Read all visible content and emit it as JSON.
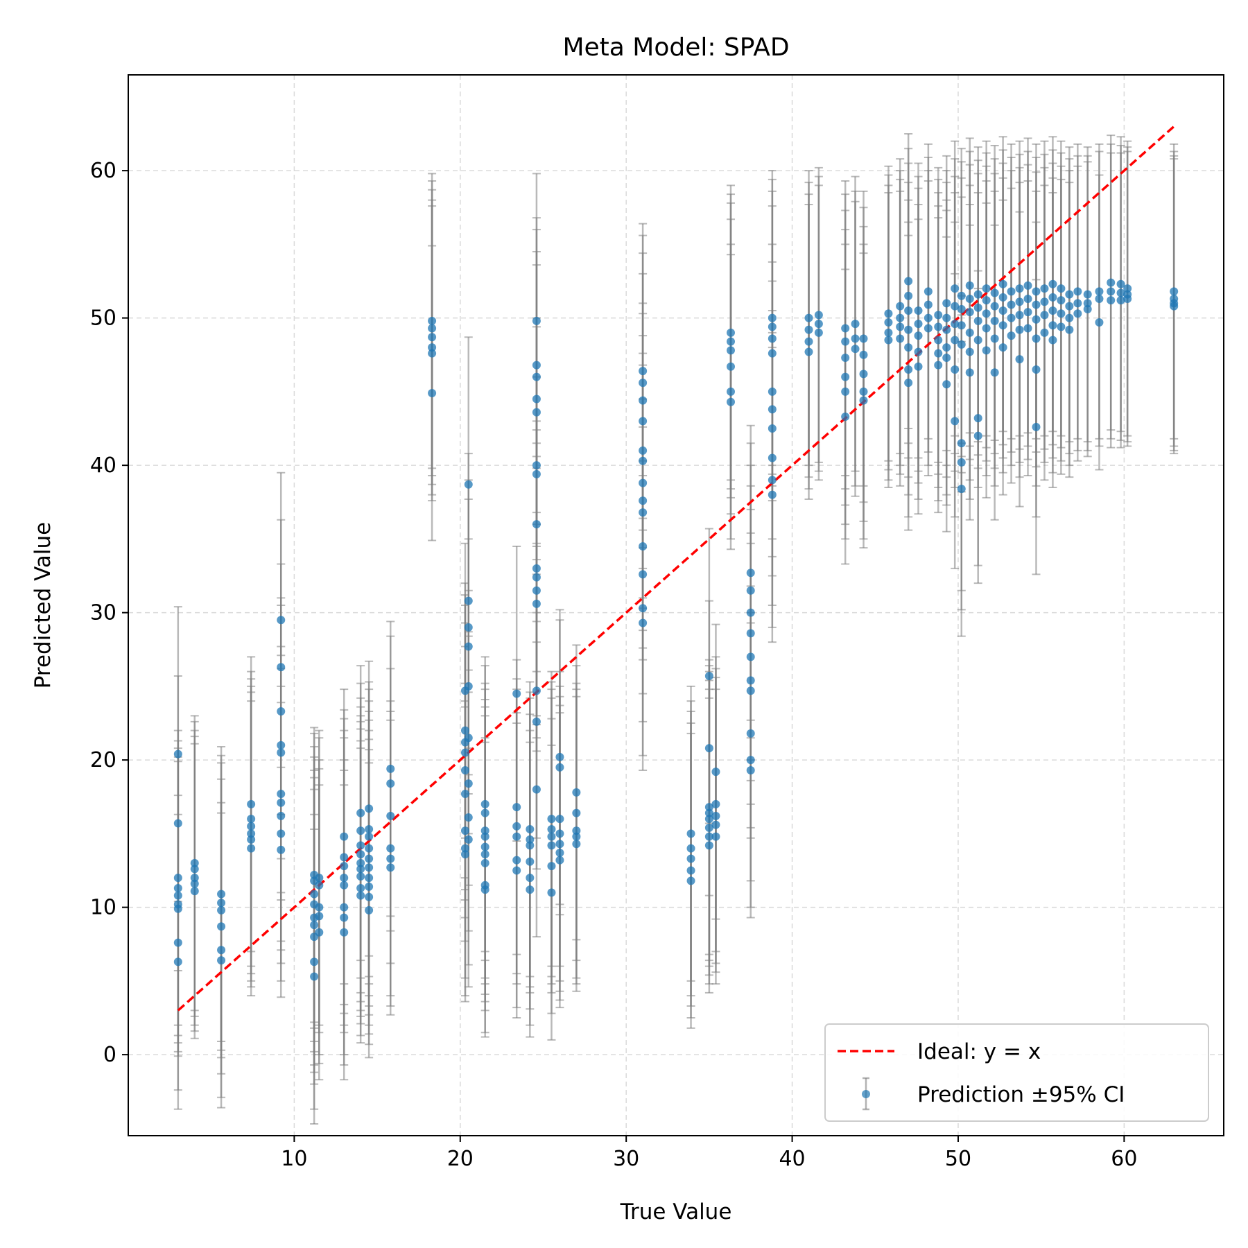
{
  "chart_data": {
    "type": "scatter",
    "title": "Meta Model: SPAD",
    "xlabel": "True Value",
    "ylabel": "Predicted Value",
    "xlim": [
      0,
      66
    ],
    "ylim": [
      -5.5,
      66.5
    ],
    "xticks": [
      10,
      20,
      30,
      40,
      50,
      60
    ],
    "yticks": [
      0,
      10,
      20,
      30,
      40,
      50,
      60
    ],
    "grid": true,
    "legend_position": "bottom-right",
    "colors": {
      "points": "#1f77b4",
      "errorbars": "#808080",
      "ideal": "#ff0000"
    },
    "ideal_line": {
      "name": "Ideal: y = x",
      "x": [
        3,
        63
      ],
      "y": [
        3,
        63
      ]
    },
    "series_name": "Prediction ±95% CI",
    "ci_half_width": 10,
    "groups": [
      {
        "x": 3.0,
        "y": [
          20.4,
          15.7,
          12.0,
          11.3,
          10.8,
          10.2,
          9.9,
          7.6,
          6.3
        ]
      },
      {
        "x": 4.0,
        "y": [
          13.0,
          12.6,
          12.0,
          11.6,
          11.1
        ]
      },
      {
        "x": 5.6,
        "y": [
          10.9,
          10.3,
          9.8,
          8.7,
          7.1,
          6.4
        ]
      },
      {
        "x": 7.4,
        "y": [
          17.0,
          16.0,
          15.5,
          15.0,
          14.6,
          14.0
        ]
      },
      {
        "x": 9.2,
        "y": [
          29.5,
          26.3,
          23.3,
          21.0,
          20.5,
          17.7,
          17.1,
          16.2,
          15.0,
          13.9
        ]
      },
      {
        "x": 11.2,
        "y": [
          12.2,
          11.8,
          10.9,
          10.2,
          9.3,
          8.8,
          8.0,
          6.3,
          5.3
        ]
      },
      {
        "x": 11.5,
        "y": [
          12.0,
          11.5,
          10.0,
          9.4,
          8.3
        ]
      },
      {
        "x": 13.0,
        "y": [
          14.8,
          13.4,
          12.8,
          12.0,
          11.5,
          10.0,
          9.3,
          8.3
        ]
      },
      {
        "x": 14.0,
        "y": [
          16.4,
          15.2,
          14.2,
          13.6,
          13.0,
          12.6,
          12.1,
          11.3,
          10.8
        ]
      },
      {
        "x": 14.5,
        "y": [
          16.7,
          15.3,
          14.8,
          14.0,
          13.3,
          12.7,
          12.0,
          11.4,
          10.7,
          9.8
        ]
      },
      {
        "x": 15.8,
        "y": [
          19.4,
          18.4,
          16.2,
          14.0,
          13.3,
          12.7
        ]
      },
      {
        "x": 18.3,
        "y": [
          49.8,
          49.3,
          48.7,
          48.0,
          47.6,
          44.9
        ]
      },
      {
        "x": 20.3,
        "y": [
          24.7,
          22.0,
          21.2,
          20.5,
          19.3,
          17.7,
          15.2,
          14.0,
          13.6
        ]
      },
      {
        "x": 20.5,
        "y": [
          38.7,
          30.8,
          29.0,
          27.7,
          25.0,
          21.5,
          18.4,
          16.1,
          14.6
        ]
      },
      {
        "x": 21.5,
        "y": [
          17.0,
          16.4,
          15.2,
          14.8,
          14.1,
          13.6,
          13.0,
          11.5,
          11.2
        ]
      },
      {
        "x": 23.4,
        "y": [
          24.5,
          16.8,
          15.5,
          14.8,
          13.2,
          12.5
        ]
      },
      {
        "x": 24.2,
        "y": [
          15.3,
          14.6,
          14.2,
          13.1,
          12.0,
          11.2
        ]
      },
      {
        "x": 24.6,
        "y": [
          49.8,
          46.8,
          46.0,
          44.5,
          43.6,
          40.0,
          39.4,
          36.0,
          33.0,
          32.4,
          31.5,
          30.6,
          24.7,
          22.6,
          18.0
        ]
      },
      {
        "x": 25.5,
        "y": [
          16.0,
          15.3,
          14.8,
          14.2,
          12.8,
          11.0
        ]
      },
      {
        "x": 26.0,
        "y": [
          20.2,
          19.5,
          16.0,
          15.0,
          14.3,
          13.7,
          13.2
        ]
      },
      {
        "x": 27.0,
        "y": [
          17.8,
          16.4,
          15.2,
          14.8,
          14.3
        ]
      },
      {
        "x": 31.0,
        "y": [
          46.4,
          45.6,
          44.4,
          43.0,
          41.0,
          40.3,
          38.8,
          37.6,
          36.8,
          34.5,
          32.6,
          30.3,
          29.3
        ]
      },
      {
        "x": 33.9,
        "y": [
          15.0,
          14.0,
          13.3,
          12.5,
          11.8
        ]
      },
      {
        "x": 35.0,
        "y": [
          25.7,
          20.8,
          16.8,
          16.4,
          16.0,
          15.4,
          14.8,
          14.2
        ]
      },
      {
        "x": 35.4,
        "y": [
          19.2,
          17.0,
          16.2,
          15.6,
          14.8
        ]
      },
      {
        "x": 37.5,
        "y": [
          32.7,
          31.5,
          30.0,
          28.6,
          27.0,
          25.4,
          24.7,
          21.8,
          20.0,
          19.3
        ]
      },
      {
        "x": 36.3,
        "y": [
          49.0,
          48.4,
          47.8,
          46.7,
          45.0,
          44.3
        ]
      },
      {
        "x": 38.8,
        "y": [
          50.0,
          49.4,
          48.6,
          47.6,
          45.0,
          43.8,
          42.5,
          40.5,
          39.0,
          38.0
        ]
      },
      {
        "x": 41.0,
        "y": [
          50.0,
          49.2,
          48.4,
          47.7
        ]
      },
      {
        "x": 41.6,
        "y": [
          50.2,
          49.6,
          49.0
        ]
      },
      {
        "x": 43.2,
        "y": [
          49.3,
          48.4,
          47.3,
          46.0,
          45.0,
          43.3
        ]
      },
      {
        "x": 43.8,
        "y": [
          49.6,
          48.6,
          47.9
        ]
      },
      {
        "x": 44.3,
        "y": [
          48.6,
          47.5,
          46.2,
          45.0,
          44.4
        ]
      },
      {
        "x": 45.8,
        "y": [
          50.3,
          49.7,
          49.0,
          48.5
        ]
      },
      {
        "x": 46.5,
        "y": [
          50.8,
          50.0,
          49.4,
          48.6
        ]
      },
      {
        "x": 47.0,
        "y": [
          52.5,
          51.5,
          50.5,
          49.2,
          48.0,
          46.5,
          45.6
        ]
      },
      {
        "x": 47.6,
        "y": [
          50.5,
          49.6,
          48.8,
          47.7,
          46.7
        ]
      },
      {
        "x": 48.2,
        "y": [
          51.8,
          50.9,
          50.0,
          49.3
        ]
      },
      {
        "x": 48.8,
        "y": [
          50.2,
          49.4,
          48.5,
          47.6,
          46.8
        ]
      },
      {
        "x": 49.3,
        "y": [
          51.0,
          50.0,
          49.2,
          48.0,
          47.3,
          45.5
        ]
      },
      {
        "x": 49.8,
        "y": [
          52.0,
          50.8,
          49.6,
          48.5,
          46.5,
          43.0
        ]
      },
      {
        "x": 50.2,
        "y": [
          51.5,
          50.6,
          49.5,
          48.2,
          41.5,
          40.2,
          38.4
        ]
      },
      {
        "x": 50.7,
        "y": [
          52.2,
          51.3,
          50.4,
          49.0,
          47.7,
          46.3
        ]
      },
      {
        "x": 51.2,
        "y": [
          51.6,
          50.7,
          49.8,
          48.5,
          43.2,
          42.0
        ]
      },
      {
        "x": 51.7,
        "y": [
          52.0,
          51.2,
          50.3,
          49.3,
          47.8
        ]
      },
      {
        "x": 52.2,
        "y": [
          51.7,
          50.8,
          49.8,
          48.6,
          46.3
        ]
      },
      {
        "x": 52.7,
        "y": [
          52.3,
          51.4,
          50.5,
          49.5,
          48.0
        ]
      },
      {
        "x": 53.2,
        "y": [
          51.8,
          50.9,
          50.0,
          48.8
        ]
      },
      {
        "x": 53.7,
        "y": [
          52.0,
          51.1,
          50.2,
          49.2,
          47.2
        ]
      },
      {
        "x": 54.2,
        "y": [
          52.2,
          51.3,
          50.4,
          49.3
        ]
      },
      {
        "x": 54.7,
        "y": [
          51.8,
          50.9,
          49.9,
          48.6,
          46.5,
          42.6
        ]
      },
      {
        "x": 55.2,
        "y": [
          52.0,
          51.1,
          50.2,
          49.0
        ]
      },
      {
        "x": 55.7,
        "y": [
          52.3,
          51.4,
          50.5,
          49.5,
          48.5
        ]
      },
      {
        "x": 56.2,
        "y": [
          52.0,
          51.2,
          50.3,
          49.4
        ]
      },
      {
        "x": 56.7,
        "y": [
          51.6,
          50.8,
          50.0,
          49.2
        ]
      },
      {
        "x": 57.2,
        "y": [
          51.8,
          51.0,
          50.3
        ]
      },
      {
        "x": 57.8,
        "y": [
          51.6,
          51.0,
          50.6
        ]
      },
      {
        "x": 58.5,
        "y": [
          51.8,
          51.3,
          49.7
        ]
      },
      {
        "x": 59.2,
        "y": [
          52.4,
          51.8,
          51.2
        ]
      },
      {
        "x": 59.8,
        "y": [
          52.3,
          51.7,
          51.2
        ]
      },
      {
        "x": 60.2,
        "y": [
          52.0,
          51.6,
          51.3
        ]
      },
      {
        "x": 63.0,
        "y": [
          51.8,
          51.3,
          51.0,
          50.8
        ]
      }
    ]
  }
}
